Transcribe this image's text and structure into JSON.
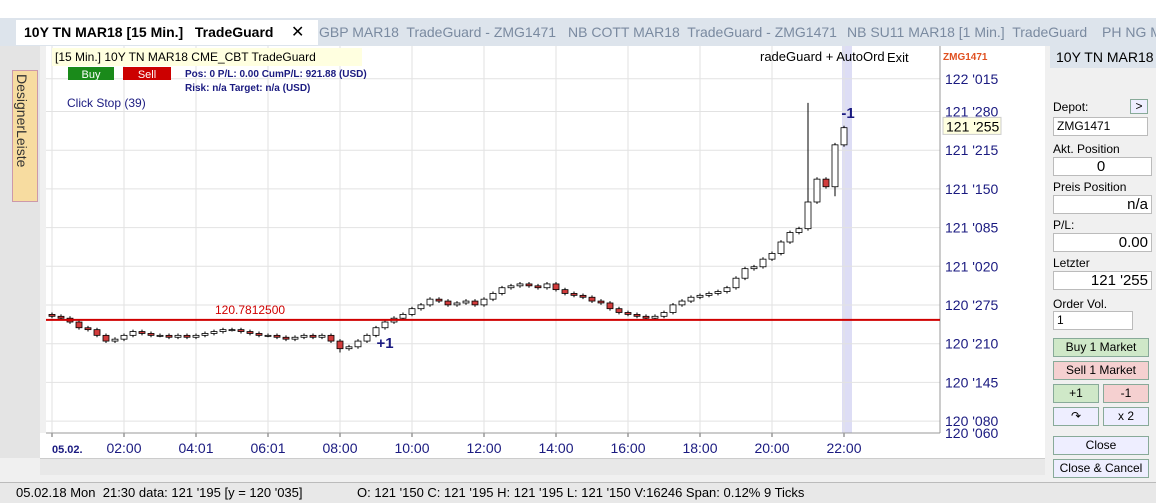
{
  "tabs": [
    "10Y TN MAR18 [15 Min.]   TradeGuard",
    "GBP MAR18  TradeGuard - ZMG1471",
    "NB COTT MAR18  TradeGuard - ZMG1471",
    "NB SU11 MAR18 [1 Min.]  TradeGuard",
    "PH NG M"
  ],
  "sidebar": {
    "label": "DesignerLeiste"
  },
  "chart_header": {
    "title": "[15 Min.] 10Y TN MAR18   CME_CBT TradeGuard",
    "buy": "Buy",
    "sell": "Sell",
    "pos": "Pos: 0  P/L: 0.00  CumP/L:  921.88 (USD)",
    "risk": "Risk: n/a  Target: n/a (USD)",
    "click_stop": "Click Stop  (39)",
    "autoorder": "radeGuard + AutoOrd",
    "exit": "Exit",
    "account": "ZMG1471"
  },
  "chart_data": {
    "type": "candlestick",
    "grid": true,
    "up_color": "#ffffff",
    "down_color": "#d23c3c",
    "ylim": [
      120.1875,
      122.2188
    ],
    "yticks": [
      {
        "value": 122.046875,
        "label": "122 '015"
      },
      {
        "value": 121.875,
        "label": "121 '280"
      },
      {
        "value": 121.671875,
        "label": "121 '215"
      },
      {
        "value": 121.46875,
        "label": "121 '150"
      },
      {
        "value": 121.265625,
        "label": "121 '085"
      },
      {
        "value": 121.0625,
        "label": "121 '020"
      },
      {
        "value": 120.859375,
        "label": "120 '275"
      },
      {
        "value": 120.65625,
        "label": "120 '210"
      },
      {
        "value": 120.453125,
        "label": "120 '145"
      },
      {
        "value": 120.25,
        "label": "120 '080"
      },
      {
        "value": 120.1875,
        "label": "120 '060"
      }
    ],
    "xticks": [
      {
        "value": 0,
        "label": "05.02."
      },
      {
        "value": 8,
        "label": "02:00"
      },
      {
        "value": 16,
        "label": "04:01"
      },
      {
        "value": 24,
        "label": "06:01"
      },
      {
        "value": 32,
        "label": "08:00"
      },
      {
        "value": 40,
        "label": "10:00"
      },
      {
        "value": 48,
        "label": "12:00"
      },
      {
        "value": 56,
        "label": "14:00"
      },
      {
        "value": 64,
        "label": "16:00"
      },
      {
        "value": 72,
        "label": "18:00"
      },
      {
        "value": 80,
        "label": "20:00"
      },
      {
        "value": 88,
        "label": "22:00"
      }
    ],
    "open": [
      120.81,
      120.8,
      120.79,
      120.77,
      120.74,
      120.73,
      120.7,
      120.67,
      120.68,
      120.7,
      120.72,
      120.71,
      120.7,
      120.7,
      120.69,
      120.7,
      120.69,
      120.7,
      120.71,
      120.72,
      120.73,
      120.73,
      120.72,
      120.71,
      120.7,
      120.7,
      120.69,
      120.68,
      120.69,
      120.7,
      120.69,
      120.7,
      120.67,
      120.63,
      120.64,
      120.67,
      120.7,
      120.74,
      120.77,
      120.79,
      120.81,
      120.84,
      120.86,
      120.89,
      120.88,
      120.86,
      120.87,
      120.88,
      120.86,
      120.89,
      120.92,
      120.95,
      120.96,
      120.97,
      120.96,
      120.95,
      120.97,
      120.94,
      120.92,
      120.91,
      120.9,
      120.88,
      120.87,
      120.84,
      120.82,
      120.81,
      120.8,
      120.79,
      120.8,
      120.82,
      120.86,
      120.88,
      120.9,
      120.91,
      120.92,
      120.93,
      120.95,
      121.0,
      121.05,
      121.06,
      121.1,
      121.13,
      121.19,
      121.24,
      121.26,
      121.4,
      121.52,
      121.48,
      121.7
    ],
    "high": [
      120.82,
      120.81,
      120.8,
      120.78,
      120.75,
      120.74,
      120.71,
      120.69,
      120.71,
      120.73,
      120.73,
      120.72,
      120.71,
      120.71,
      120.71,
      120.71,
      120.71,
      120.72,
      120.73,
      120.74,
      120.74,
      120.74,
      120.73,
      120.72,
      120.71,
      120.71,
      120.7,
      120.7,
      120.71,
      120.71,
      120.71,
      120.71,
      120.68,
      120.65,
      120.68,
      120.71,
      120.75,
      120.78,
      120.8,
      120.82,
      120.85,
      120.87,
      120.9,
      120.9,
      120.89,
      120.88,
      120.89,
      120.89,
      120.9,
      120.93,
      120.96,
      120.97,
      120.98,
      120.98,
      120.97,
      120.98,
      120.98,
      120.95,
      120.93,
      120.92,
      120.91,
      120.89,
      120.88,
      120.85,
      120.83,
      120.82,
      120.81,
      120.81,
      120.83,
      120.87,
      120.89,
      120.91,
      120.92,
      120.93,
      120.94,
      120.96,
      121.01,
      121.06,
      121.07,
      121.11,
      121.14,
      121.2,
      121.25,
      121.27,
      121.92,
      121.53,
      121.53,
      121.71,
      121.8
    ],
    "low": [
      120.79,
      120.78,
      120.76,
      120.73,
      120.72,
      120.69,
      120.66,
      120.66,
      120.67,
      120.69,
      120.7,
      120.69,
      120.69,
      120.68,
      120.68,
      120.68,
      120.68,
      120.69,
      120.7,
      120.71,
      120.72,
      120.71,
      120.7,
      120.69,
      120.69,
      120.68,
      120.67,
      120.67,
      120.68,
      120.68,
      120.68,
      120.66,
      120.61,
      120.62,
      120.63,
      120.66,
      120.69,
      120.73,
      120.76,
      120.78,
      120.8,
      120.83,
      120.85,
      120.87,
      120.85,
      120.85,
      120.86,
      120.85,
      120.85,
      120.88,
      120.91,
      120.94,
      120.95,
      120.95,
      120.94,
      120.94,
      120.93,
      120.91,
      120.9,
      120.89,
      120.87,
      120.86,
      120.83,
      120.81,
      120.8,
      120.79,
      120.78,
      120.78,
      120.79,
      120.81,
      120.85,
      120.87,
      120.89,
      120.9,
      120.91,
      120.92,
      120.94,
      120.99,
      121.04,
      121.05,
      121.09,
      121.12,
      121.18,
      121.23,
      121.25,
      121.39,
      121.47,
      121.43,
      121.69
    ],
    "close": [
      120.8,
      120.79,
      120.77,
      120.74,
      120.73,
      120.7,
      120.67,
      120.68,
      120.7,
      120.72,
      120.71,
      120.7,
      120.7,
      120.69,
      120.7,
      120.69,
      120.7,
      120.71,
      120.72,
      120.73,
      120.73,
      120.72,
      120.71,
      120.7,
      120.7,
      120.69,
      120.68,
      120.69,
      120.7,
      120.69,
      120.7,
      120.67,
      120.63,
      120.64,
      120.67,
      120.7,
      120.74,
      120.77,
      120.79,
      120.81,
      120.84,
      120.86,
      120.89,
      120.88,
      120.86,
      120.87,
      120.88,
      120.86,
      120.89,
      120.92,
      120.95,
      120.96,
      120.97,
      120.96,
      120.95,
      120.97,
      120.94,
      120.92,
      120.91,
      120.9,
      120.88,
      120.87,
      120.84,
      120.82,
      120.81,
      120.8,
      120.79,
      120.8,
      120.82,
      120.86,
      120.88,
      120.9,
      120.91,
      120.92,
      120.93,
      120.95,
      121.0,
      121.05,
      121.06,
      121.1,
      121.13,
      121.19,
      121.24,
      121.26,
      121.4,
      121.52,
      121.48,
      121.7,
      121.79
    ],
    "level": {
      "value": 120.78125,
      "label": "120.7812500",
      "color": "#d00000"
    },
    "last": {
      "value": 121.796875,
      "label": "121 '255"
    },
    "annotations": [
      "+1",
      "-1"
    ]
  },
  "panel": {
    "title": "10Y TN MAR18",
    "depot": "Depot:",
    "depot_btn": ">",
    "account": "ZMG1471",
    "akt_label": "Akt. Position",
    "akt_value": "0",
    "preis_label": "Preis Position",
    "preis_value": "n/a",
    "pl_label": "P/L:",
    "pl_value": "0.00",
    "letzter_label": "Letzter",
    "letzter_value": "121 '255",
    "vol_label": "Order Vol.",
    "vol_value": "1",
    "buy": "Buy 1 Market",
    "sell": "Sell 1 Market",
    "plus": "+1",
    "minus": "-1",
    "x2": "x 2",
    "close": "Close",
    "close_cancel": "Close & Cancel"
  },
  "status": {
    "left": "05.02.18 Mon  21:30 data: 121 '195 [y = 120 '035]",
    "right": "O: 121 '150 C: 121 '195 H: 121 '195 L: 121 '150 V:16246 Span: 0.12% 9 Ticks"
  }
}
